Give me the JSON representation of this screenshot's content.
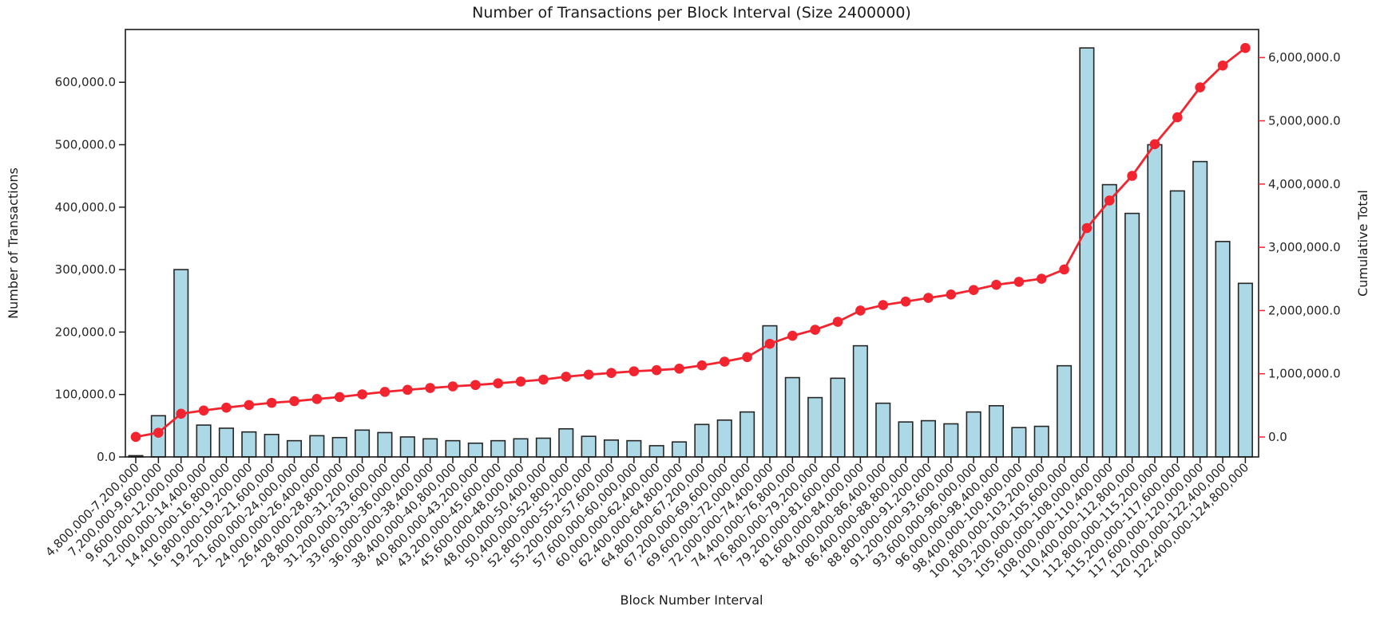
{
  "colors": {
    "background": "#ffffff",
    "bar_fill": "#add8e6",
    "bar_edge": "#262626",
    "red": "#f2242f",
    "spine": "#1c1c1c",
    "tick_text": "#262626"
  },
  "chart_data": {
    "type": "bar",
    "title": "Number of Transactions per Block Interval (Size 2400000)",
    "x_axis": {
      "label": "Block Number Interval",
      "tick_rotation_deg": 45
    },
    "y_axis_left": {
      "label": "Number of Transactions",
      "ticks": [
        {
          "label": "0.0",
          "value": 0
        },
        {
          "label": "100,000.0",
          "value": 100000
        },
        {
          "label": "200,000.0",
          "value": 200000
        },
        {
          "label": "300,000.0",
          "value": 300000
        },
        {
          "label": "400,000.0",
          "value": 400000
        },
        {
          "label": "500,000.0",
          "value": 500000
        },
        {
          "label": "600,000.0",
          "value": 600000
        }
      ]
    },
    "y_axis_right": {
      "label": "Cumulative Total",
      "ticks": [
        {
          "label": "0.0",
          "value": 0
        },
        {
          "label": "1,000,000.0",
          "value": 1000000
        },
        {
          "label": "2,000,000.0",
          "value": 2000000
        },
        {
          "label": "3,000,000.0",
          "value": 3000000
        },
        {
          "label": "4,000,000.0",
          "value": 4000000
        },
        {
          "label": "5,000,000.0",
          "value": 5000000
        },
        {
          "label": "6,000,000.0",
          "value": 6000000
        }
      ]
    },
    "ylim_left": [
      0,
      684500
    ],
    "ylim_right": [
      -315000,
      6444000
    ],
    "grid": false,
    "legend": "none",
    "categories": [
      "4,800,000-7,200,000",
      "7,200,000-9,600,000",
      "9,600,000-12,000,000",
      "12,000,000-14,400,000",
      "14,400,000-16,800,000",
      "16,800,000-19,200,000",
      "19,200,000-21,600,000",
      "21,600,000-24,000,000",
      "24,000,000-26,400,000",
      "26,400,000-28,800,000",
      "28,800,000-31,200,000",
      "31,200,000-33,600,000",
      "33,600,000-36,000,000",
      "36,000,000-38,400,000",
      "38,400,000-40,800,000",
      "40,800,000-43,200,000",
      "43,200,000-45,600,000",
      "45,600,000-48,000,000",
      "48,000,000-50,400,000",
      "50,400,000-52,800,000",
      "52,800,000-55,200,000",
      "55,200,000-57,600,000",
      "57,600,000-60,000,000",
      "60,000,000-62,400,000",
      "62,400,000-64,800,000",
      "64,800,000-67,200,000",
      "67,200,000-69,600,000",
      "69,600,000-72,000,000",
      "72,000,000-74,400,000",
      "74,400,000-76,800,000",
      "76,800,000-79,200,000",
      "79,200,000-81,600,000",
      "81,600,000-84,000,000",
      "84,000,000-86,400,000",
      "86,400,000-88,800,000",
      "88,800,000-91,200,000",
      "91,200,000-93,600,000",
      "93,600,000-96,000,000",
      "96,000,000-98,400,000",
      "98,400,000-100,800,000",
      "100,800,000-103,200,000",
      "103,200,000-105,600,000",
      "105,600,000-108,000,000",
      "108,000,000-110,400,000",
      "110,400,000-112,800,000",
      "112,800,000-115,200,000",
      "115,200,000-117,600,000",
      "117,600,000-120,000,000",
      "120,000,000-122,400,000",
      "122,400,000-124,800,000"
    ],
    "series": [
      {
        "name": "Number of Transactions",
        "type": "bar",
        "axis": "left",
        "values": [
          2000,
          66000,
          300000,
          51000,
          46000,
          40000,
          36000,
          26000,
          34000,
          31000,
          43000,
          39000,
          32000,
          29000,
          26000,
          22000,
          26000,
          29000,
          30000,
          45000,
          33000,
          27000,
          26000,
          18000,
          24000,
          52000,
          59000,
          72000,
          210000,
          127000,
          95000,
          126000,
          178000,
          86000,
          56000,
          58000,
          53000,
          72000,
          82000,
          47000,
          49000,
          146000,
          655000,
          436000,
          390000,
          500000,
          426000,
          473000,
          345000,
          278000
        ]
      },
      {
        "name": "Cumulative Total",
        "type": "line",
        "axis": "right",
        "values": [
          2000,
          68000,
          368000,
          419000,
          465000,
          505000,
          541000,
          567000,
          601000,
          632000,
          675000,
          714000,
          746000,
          775000,
          801000,
          823000,
          849000,
          878000,
          908000,
          953000,
          986000,
          1013000,
          1039000,
          1057000,
          1081000,
          1133000,
          1192000,
          1264000,
          1474000,
          1601000,
          1696000,
          1822000,
          2000000,
          2086000,
          2142000,
          2200000,
          2253000,
          2325000,
          2407000,
          2454000,
          2503000,
          2649000,
          3304000,
          3740000,
          4130000,
          4630000,
          5056000,
          5529000,
          5874000,
          6152000
        ]
      }
    ]
  }
}
